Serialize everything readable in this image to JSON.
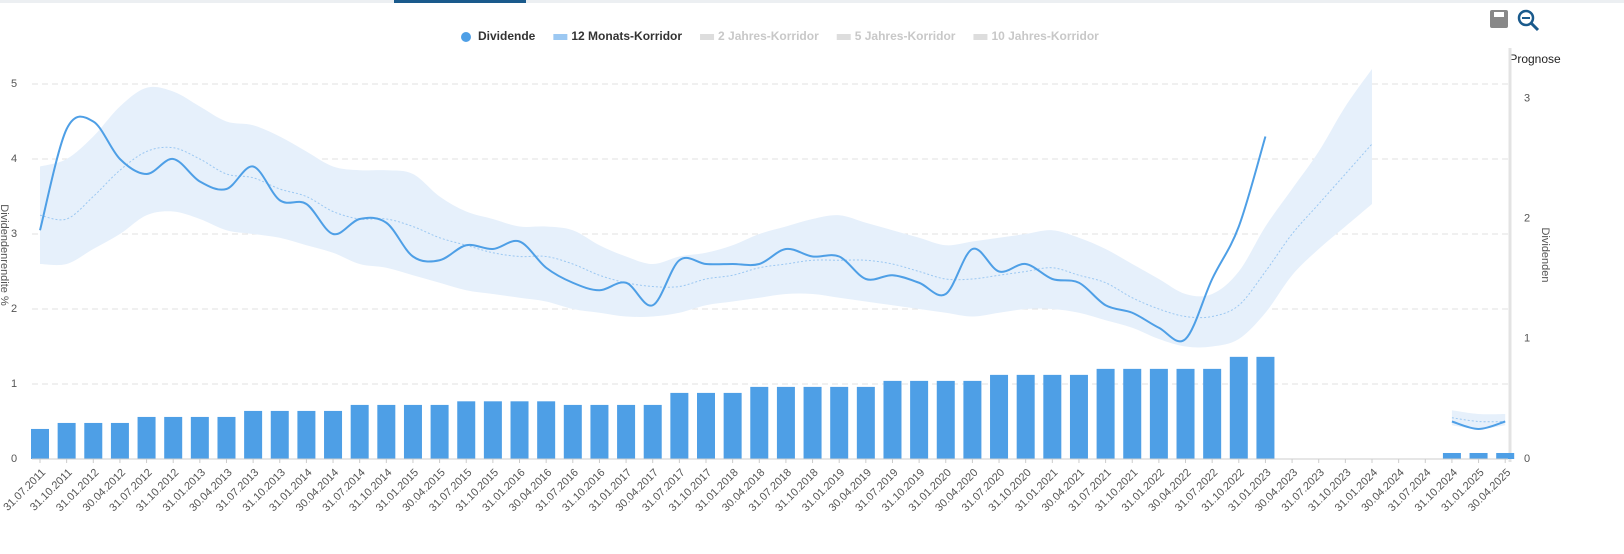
{
  "chart_data": {
    "type": "line",
    "axis_label": "Dividendenrendite %",
    "y2_axis_label": "Dividenden",
    "forecast_label": "Prognose",
    "categories": [
      "31.07.2011",
      "31.10.2011",
      "31.01.2012",
      "30.04.2012",
      "31.07.2012",
      "31.10.2012",
      "31.01.2013",
      "30.04.2013",
      "31.07.2013",
      "31.10.2013",
      "31.01.2014",
      "30.04.2014",
      "31.07.2014",
      "31.10.2014",
      "31.01.2015",
      "30.04.2015",
      "31.07.2015",
      "31.10.2015",
      "31.01.2016",
      "30.04.2016",
      "31.07.2016",
      "31.10.2016",
      "31.01.2017",
      "30.04.2017",
      "31.07.2017",
      "31.10.2017",
      "31.01.2018",
      "30.04.2018",
      "31.07.2018",
      "31.10.2018",
      "31.01.2019",
      "30.04.2019",
      "31.07.2019",
      "31.10.2019",
      "31.01.2020",
      "30.04.2020",
      "31.07.2020",
      "31.10.2020",
      "31.01.2021",
      "30.04.2021",
      "31.07.2021",
      "31.10.2021",
      "31.01.2022",
      "30.04.2022",
      "31.07.2022",
      "31.10.2022",
      "31.01.2023",
      "30.04.2023",
      "31.07.2023",
      "31.10.2023",
      "31.01.2024",
      "30.04.2024",
      "31.07.2024",
      "31.10.2024",
      "31.01.2025",
      "30.04.2025"
    ],
    "series": [
      {
        "name": "Dividende",
        "color": "#4e9fe6",
        "values": [
          3.05,
          4.4,
          4.5,
          4.0,
          3.8,
          4.0,
          3.7,
          3.6,
          3.9,
          3.45,
          3.4,
          3.0,
          3.2,
          3.15,
          2.7,
          2.65,
          2.85,
          2.8,
          2.9,
          2.55,
          2.35,
          2.25,
          2.35,
          2.05,
          2.65,
          2.6,
          2.6,
          2.6,
          2.8,
          2.7,
          2.7,
          2.4,
          2.45,
          2.35,
          2.2,
          2.8,
          2.5,
          2.6,
          2.4,
          2.35,
          2.05,
          1.95,
          1.75,
          1.6,
          2.4,
          3.1,
          4.3,
          null,
          null,
          null,
          null,
          null,
          null,
          0.5,
          0.4,
          0.5
        ]
      }
    ],
    "corridor": {
      "name": "12 Monats-Korridor",
      "color": "#9cc8f2",
      "fill": "#e6f0fb",
      "high": [
        3.9,
        4.0,
        4.3,
        4.7,
        4.95,
        4.9,
        4.7,
        4.5,
        4.45,
        4.3,
        4.1,
        3.9,
        3.85,
        3.85,
        3.8,
        3.5,
        3.3,
        3.2,
        3.1,
        3.1,
        3.05,
        2.85,
        2.7,
        2.6,
        2.7,
        2.75,
        2.85,
        3.0,
        3.1,
        3.2,
        3.25,
        3.15,
        3.05,
        2.95,
        2.85,
        2.9,
        2.95,
        3.0,
        3.05,
        2.95,
        2.8,
        2.6,
        2.4,
        2.2,
        2.2,
        2.5,
        3.1,
        3.6,
        4.1,
        4.7,
        5.2,
        null,
        null,
        0.65,
        0.6,
        0.6
      ],
      "low": [
        2.6,
        2.6,
        2.8,
        3.0,
        3.25,
        3.3,
        3.2,
        3.05,
        3.0,
        2.95,
        2.85,
        2.75,
        2.6,
        2.55,
        2.45,
        2.35,
        2.25,
        2.2,
        2.15,
        2.1,
        2.0,
        1.95,
        1.9,
        1.9,
        1.95,
        2.05,
        2.1,
        2.15,
        2.2,
        2.2,
        2.15,
        2.1,
        2.05,
        2.0,
        1.95,
        1.9,
        1.95,
        2.0,
        2.0,
        1.95,
        1.85,
        1.75,
        1.6,
        1.5,
        1.5,
        1.6,
        1.95,
        2.45,
        2.8,
        3.1,
        3.4,
        null,
        null,
        0.45,
        0.4,
        0.45
      ],
      "mid": [
        3.25,
        3.2,
        3.5,
        3.85,
        4.1,
        4.15,
        4.0,
        3.8,
        3.75,
        3.6,
        3.5,
        3.3,
        3.2,
        3.2,
        3.1,
        2.95,
        2.85,
        2.75,
        2.7,
        2.7,
        2.6,
        2.45,
        2.35,
        2.3,
        2.3,
        2.4,
        2.45,
        2.55,
        2.6,
        2.65,
        2.65,
        2.65,
        2.6,
        2.5,
        2.4,
        2.4,
        2.45,
        2.5,
        2.55,
        2.45,
        2.35,
        2.15,
        2.0,
        1.9,
        1.9,
        2.05,
        2.5,
        3.0,
        3.4,
        3.8,
        4.2,
        null,
        null,
        0.55,
        0.5,
        0.5
      ]
    },
    "bars": {
      "color": "#4e9fe6",
      "axis": "y2",
      "values": [
        0.25,
        0.3,
        0.3,
        0.3,
        0.35,
        0.35,
        0.35,
        0.35,
        0.4,
        0.4,
        0.4,
        0.4,
        0.45,
        0.45,
        0.45,
        0.45,
        0.48,
        0.48,
        0.48,
        0.48,
        0.45,
        0.45,
        0.45,
        0.45,
        0.55,
        0.55,
        0.55,
        0.6,
        0.6,
        0.6,
        0.6,
        0.6,
        0.65,
        0.65,
        0.65,
        0.65,
        0.7,
        0.7,
        0.7,
        0.7,
        0.75,
        0.75,
        0.75,
        0.75,
        0.75,
        0.85,
        0.85,
        null,
        null,
        null,
        null,
        null,
        null,
        0.05,
        0.05,
        0.05
      ]
    },
    "legend_inactive": [
      "2 Jahres-Korridor",
      "5 Jahres-Korridor",
      "10 Jahres-Korridor"
    ],
    "ylim": [
      0,
      5.4
    ],
    "yticks": [
      0,
      1,
      2,
      3,
      4,
      5
    ],
    "y2lim": [
      0,
      3.37
    ],
    "y2ticks": [
      0,
      1,
      2,
      3
    ],
    "grid": true
  }
}
